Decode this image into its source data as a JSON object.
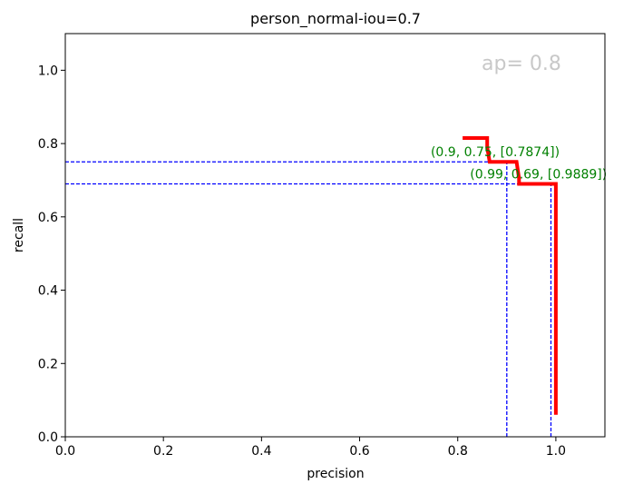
{
  "chart_data": {
    "type": "line",
    "title": "person_normal-iou=0.7",
    "xlabel": "precision",
    "ylabel": "recall",
    "xlim": [
      0,
      1.1
    ],
    "ylim": [
      0,
      1.1
    ],
    "xticks": [
      "0.0",
      "0.2",
      "0.4",
      "0.6",
      "0.8",
      "1.0"
    ],
    "yticks": [
      "0.0",
      "0.2",
      "0.4",
      "0.6",
      "0.8",
      "1.0"
    ],
    "xtick_values": [
      0,
      0.2,
      0.4,
      0.6,
      0.8,
      1.0
    ],
    "ytick_values": [
      0,
      0.2,
      0.4,
      0.6,
      0.8,
      1.0
    ],
    "grid": false,
    "series": [
      {
        "color": "#ff0000",
        "x": [
          0.81,
          0.86,
          0.86,
          0.865,
          0.92,
          0.925,
          0.925,
          1.0,
          1.0
        ],
        "y": [
          0.815,
          0.815,
          0.79,
          0.75,
          0.75,
          0.705,
          0.69,
          0.69,
          0.06
        ]
      }
    ],
    "guides": [
      {
        "x": 0.9,
        "y": 0.75,
        "label": "(0.9, 0.75, [0.7874])",
        "label_x": 0.745,
        "label_y": 0.765
      },
      {
        "x": 0.99,
        "y": 0.69,
        "label": "(0.99, 0.69, [0.9889])",
        "label_x": 0.825,
        "label_y": 0.705
      }
    ],
    "guide_color": "#0000ff",
    "annotation_color": "#008000",
    "ap_text": "ap= 0.8",
    "ap_color": "#c8c8c8"
  }
}
